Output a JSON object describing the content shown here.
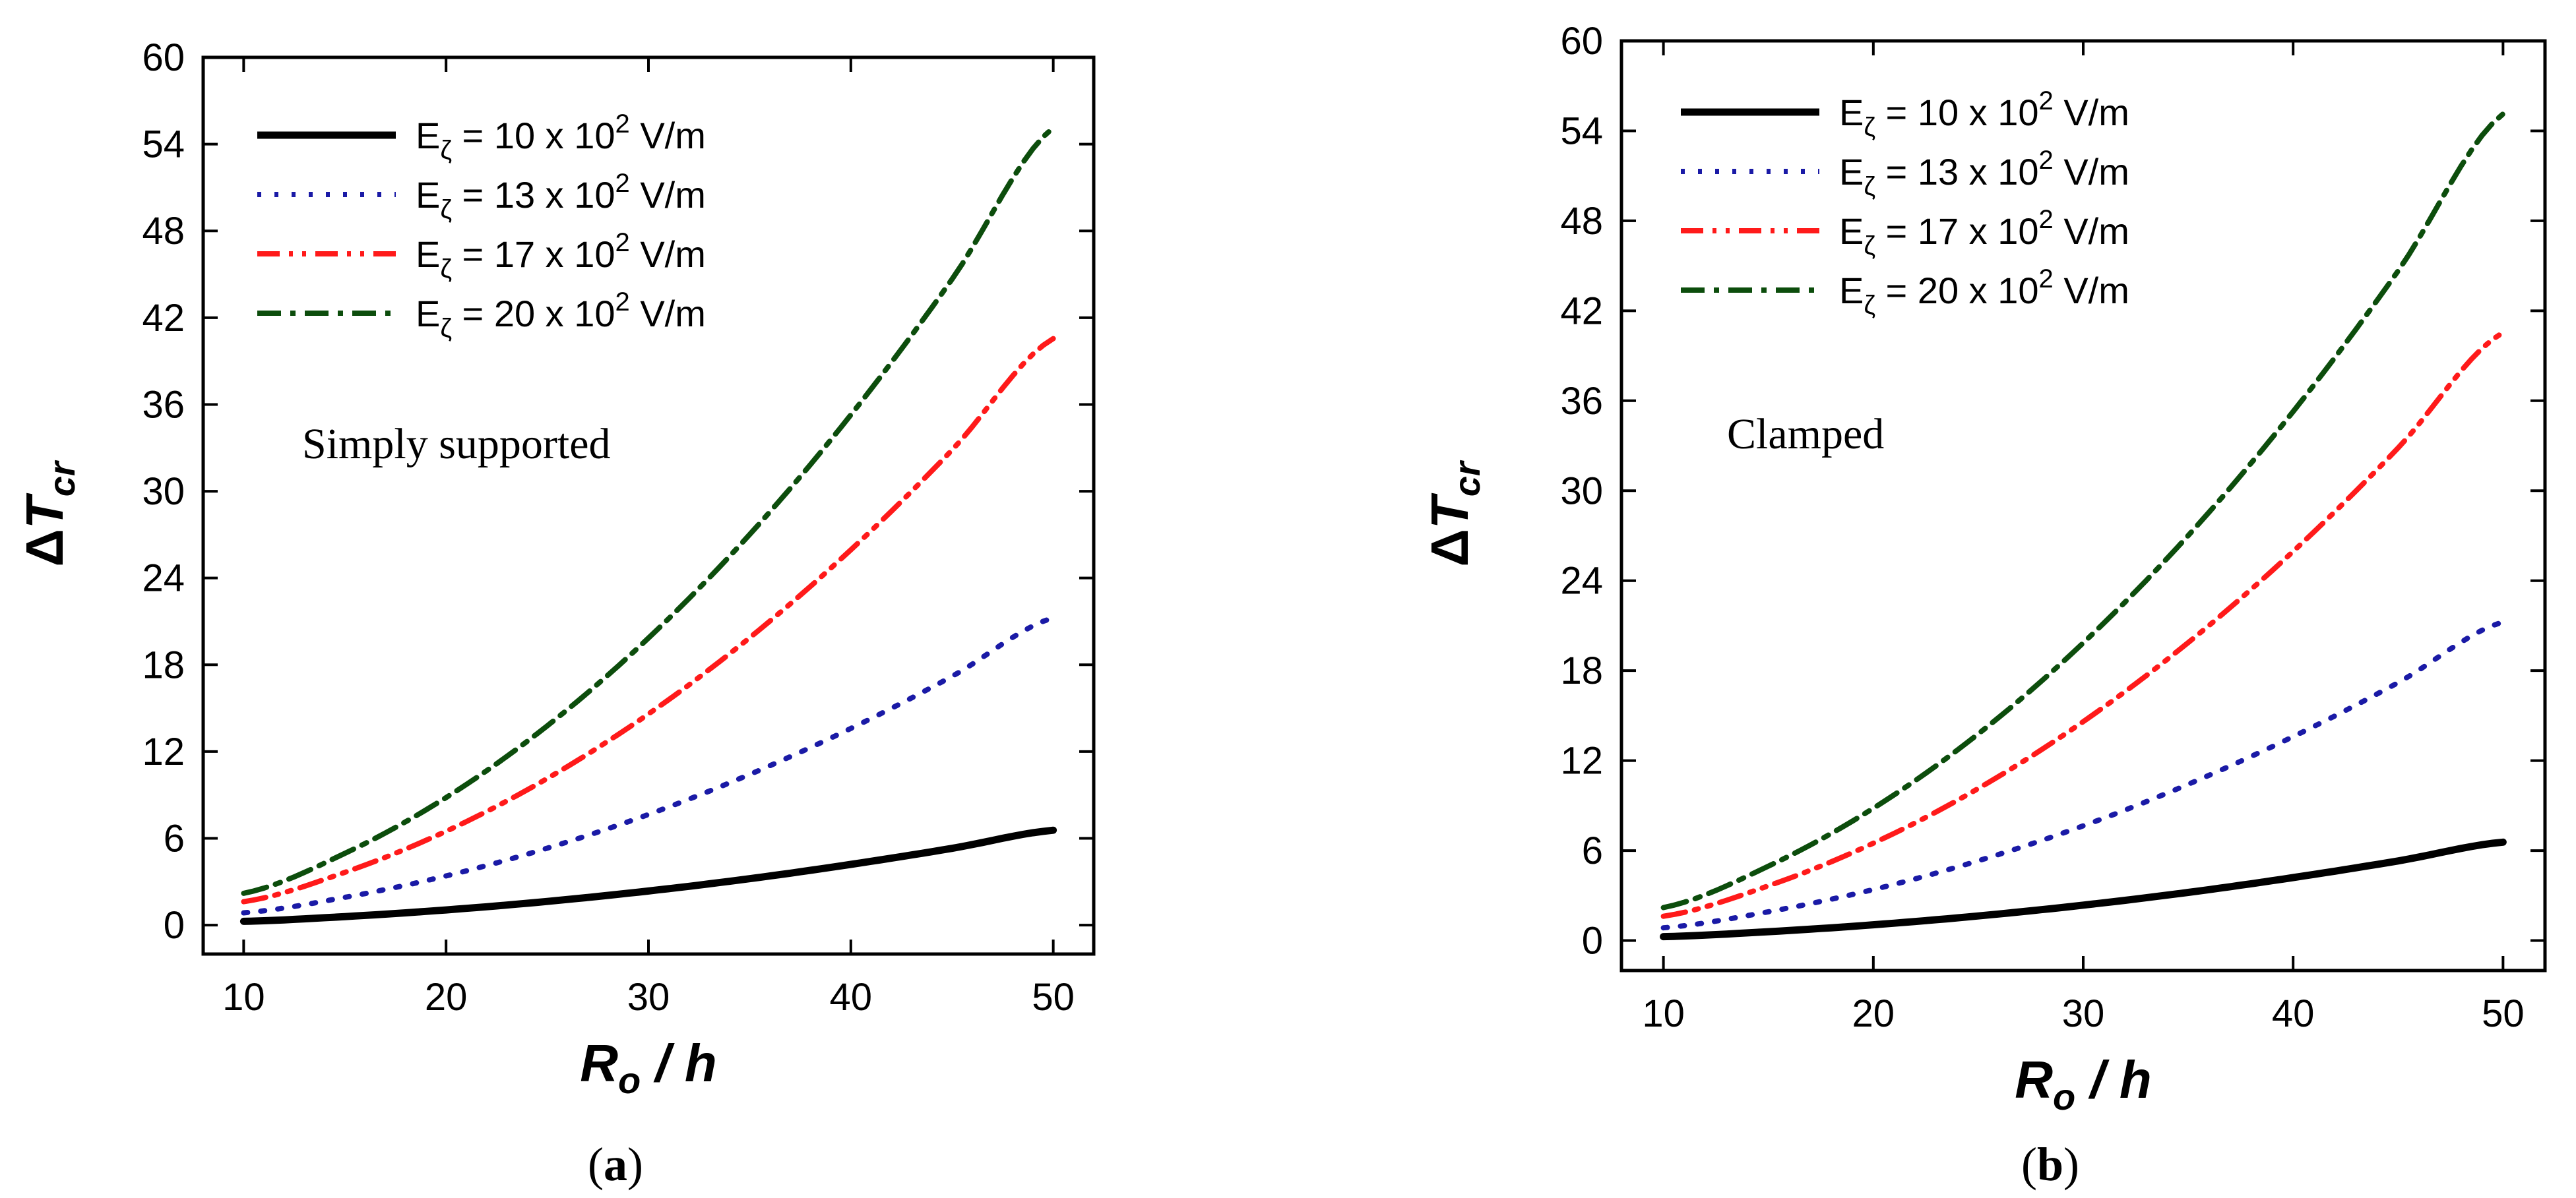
{
  "chart_data": [
    {
      "type": "line",
      "panel": "a",
      "caption_open": "(",
      "caption_letter": "a",
      "caption_close": ")",
      "annotation": "Simply supported",
      "xlabel_main": "R",
      "xlabel_sub": "o",
      "xlabel_rest": " / h",
      "ylabel_delta": "Δ",
      "ylabel_main": "T",
      "ylabel_sub": "cr",
      "xlim": [
        8,
        52
      ],
      "ylim": [
        -2,
        60
      ],
      "xticks": [
        10,
        20,
        30,
        40,
        50
      ],
      "xtick_labels": [
        "10",
        "20",
        "30",
        "40",
        "50"
      ],
      "yticks": [
        0,
        6,
        12,
        18,
        24,
        30,
        36,
        42,
        48,
        54,
        60
      ],
      "ytick_labels": [
        "0",
        "6",
        "12",
        "18",
        "24",
        "30",
        "36",
        "42",
        "48",
        "54",
        "60"
      ],
      "x": [
        10,
        15,
        20,
        25,
        30,
        35,
        40,
        45,
        50
      ],
      "series": [
        {
          "name": "E_ζ = 10 x 10^2 V/m",
          "leg_E": "E",
          "leg_sub": "ζ",
          "leg_mid": " = 10 x 10",
          "leg_sup": "2",
          "leg_unit": " V/m",
          "color": "#000000",
          "dash": "none",
          "width": 11,
          "values": [
            0.26,
            0.59,
            1.05,
            1.64,
            2.36,
            3.21,
            4.2,
            5.31,
            6.56
          ]
        },
        {
          "name": "E_ζ = 13 x 10^2 V/m",
          "leg_E": "E",
          "leg_sub": "ζ",
          "leg_mid": " = 13 x 10",
          "leg_sup": "2",
          "leg_unit": " V/m",
          "color": "#1a1aa6",
          "dash": "dot",
          "width": 8,
          "values": [
            0.85,
            1.92,
            3.4,
            5.32,
            7.65,
            10.42,
            13.6,
            17.2,
            21.25
          ]
        },
        {
          "name": "E_ζ = 17 x 10^2 V/m",
          "leg_E": "E",
          "leg_sub": "ζ",
          "leg_mid": " = 17 x 10",
          "leg_sup": "2",
          "leg_unit": " V/m",
          "color": "#ff1a1a",
          "dash": "dashdotdot",
          "width": 8,
          "values": [
            1.62,
            3.65,
            6.49,
            10.14,
            14.6,
            19.87,
            25.95,
            32.85,
            40.55
          ]
        },
        {
          "name": "E_ζ = 20 x 10^2 V/m",
          "leg_E": "E",
          "leg_sub": "ζ",
          "leg_mid": " = 20 x 10",
          "leg_sup": "2",
          "leg_unit": " V/m",
          "color": "#0c4d0c",
          "dash": "dashdot",
          "width": 8,
          "values": [
            2.2,
            4.96,
            8.82,
            13.78,
            19.85,
            27.01,
            35.28,
            44.66,
            55.13
          ]
        }
      ]
    },
    {
      "type": "line",
      "panel": "b",
      "caption_open": "(",
      "caption_letter": "b",
      "caption_close": ")",
      "annotation": "Clamped",
      "xlabel_main": "R",
      "xlabel_sub": "o",
      "xlabel_rest": " / h",
      "ylabel_delta": "Δ",
      "ylabel_main": "T",
      "ylabel_sub": "cr",
      "xlim": [
        8,
        52
      ],
      "ylim": [
        -2,
        60
      ],
      "xticks": [
        10,
        20,
        30,
        40,
        50
      ],
      "xtick_labels": [
        "10",
        "20",
        "30",
        "40",
        "50"
      ],
      "yticks": [
        0,
        6,
        12,
        18,
        24,
        30,
        36,
        42,
        48,
        54,
        60
      ],
      "ytick_labels": [
        "0",
        "6",
        "12",
        "18",
        "24",
        "30",
        "36",
        "42",
        "48",
        "54",
        "60"
      ],
      "x": [
        10,
        15,
        20,
        25,
        30,
        35,
        40,
        45,
        50
      ],
      "series": [
        {
          "name": "E_ζ = 10 x 10^2 V/m",
          "leg_E": "E",
          "leg_sub": "ζ",
          "leg_mid": " = 10 x 10",
          "leg_sup": "2",
          "leg_unit": " V/m",
          "color": "#000000",
          "dash": "none",
          "width": 11,
          "values": [
            0.26,
            0.59,
            1.05,
            1.64,
            2.36,
            3.21,
            4.2,
            5.31,
            6.56
          ]
        },
        {
          "name": "E_ζ = 13 x 10^2 V/m",
          "leg_E": "E",
          "leg_sub": "ζ",
          "leg_mid": " = 13 x 10",
          "leg_sup": "2",
          "leg_unit": " V/m",
          "color": "#1a1aa6",
          "dash": "dot",
          "width": 8,
          "values": [
            0.85,
            1.92,
            3.4,
            5.32,
            7.65,
            10.42,
            13.6,
            17.2,
            21.25
          ]
        },
        {
          "name": "E_ζ = 17 x 10^2 V/m",
          "leg_E": "E",
          "leg_sub": "ζ",
          "leg_mid": " = 17 x 10",
          "leg_sup": "2",
          "leg_unit": " V/m",
          "color": "#ff1a1a",
          "dash": "dashdotdot",
          "width": 8,
          "values": [
            1.62,
            3.65,
            6.49,
            10.14,
            14.6,
            19.87,
            25.95,
            32.85,
            40.55
          ]
        },
        {
          "name": "E_ζ = 20 x 10^2 V/m",
          "leg_E": "E",
          "leg_sub": "ζ",
          "leg_mid": " = 20 x 10",
          "leg_sup": "2",
          "leg_unit": " V/m",
          "color": "#0c4d0c",
          "dash": "dashdot",
          "width": 8,
          "values": [
            2.2,
            4.96,
            8.82,
            13.78,
            19.85,
            27.01,
            35.28,
            44.66,
            55.13
          ]
        }
      ]
    }
  ]
}
